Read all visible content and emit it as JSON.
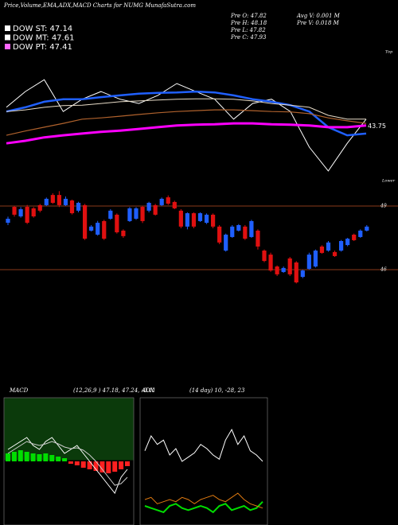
{
  "header": {
    "title": "Price,Volume,EMA,ADX,MACD Charts for NUMG MunafaSutra.com",
    "legend": [
      {
        "label": "DOW ST: 47.14",
        "color": "#ffffff"
      },
      {
        "label": "DOW MT: 47.61",
        "color": "#ffffff"
      },
      {
        "label": "DOW PT: 47.41",
        "color": "#ff66ff"
      }
    ],
    "info": [
      "Pre  O: 47.82",
      "Pre  H: 48.18",
      "Pre  L: 47.82",
      "Pre  C: 47.93"
    ],
    "info2": [
      "Avg V: 0.001 M",
      "Pre  V: 0.018 M"
    ]
  },
  "chart_data": [
    {
      "type": "line",
      "annotations": [
        "Top",
        "Lower"
      ],
      "ylim": [
        42.5,
        45.5
      ],
      "yticks": [
        43.75
      ],
      "series": [
        {
          "color": "#ffffff",
          "width": 1,
          "values": [
            44.19,
            44.56,
            44.84,
            44.09,
            44.38,
            44.56,
            44.38,
            44.28,
            44.47,
            44.75,
            44.56,
            44.38,
            43.91,
            44.28,
            44.38,
            44.09,
            43.25,
            42.69,
            43.34,
            43.91
          ]
        },
        {
          "color": "#2060ff",
          "width": 2.5,
          "values": [
            44.09,
            44.19,
            44.32,
            44.38,
            44.38,
            44.43,
            44.47,
            44.51,
            44.53,
            44.54,
            44.56,
            44.54,
            44.47,
            44.38,
            44.32,
            44.24,
            44.09,
            43.72,
            43.53,
            43.57
          ]
        },
        {
          "color": "#e8dcc8",
          "width": 1,
          "values": [
            44.09,
            44.13,
            44.19,
            44.23,
            44.24,
            44.28,
            44.32,
            44.34,
            44.36,
            44.38,
            44.39,
            44.39,
            44.38,
            44.34,
            44.28,
            44.24,
            44.19,
            44.0,
            43.91,
            43.91
          ]
        },
        {
          "color": "#b0622d",
          "width": 1.2,
          "values": [
            43.53,
            43.63,
            43.72,
            43.81,
            43.91,
            43.94,
            43.98,
            44.02,
            44.06,
            44.09,
            44.11,
            44.13,
            44.13,
            44.11,
            44.09,
            44.08,
            44.04,
            43.94,
            43.87,
            43.81
          ]
        },
        {
          "color": "#ff00ff",
          "width": 3,
          "values": [
            43.34,
            43.4,
            43.48,
            43.53,
            43.57,
            43.61,
            43.64,
            43.68,
            43.72,
            43.76,
            43.78,
            43.79,
            43.81,
            43.81,
            43.79,
            43.78,
            43.76,
            43.72,
            43.72,
            43.76
          ]
        }
      ]
    },
    {
      "type": "candlestick",
      "up_color": "#1f5fff",
      "down_color": "#e01010",
      "ylim": [
        45,
        50.3
      ],
      "yticks": [
        49,
        46
      ],
      "grid_color": "#8a3a1a",
      "open": [
        48.21,
        48.96,
        48.51,
        48.96,
        48.89,
        49.04,
        49.04,
        49.52,
        49.52,
        49.04,
        49.26,
        48.78,
        49.04,
        47.84,
        47.65,
        48.29,
        48.4,
        48.59,
        47.84,
        48.29,
        48.4,
        48.96,
        48.78,
        49.04,
        49.04,
        49.41,
        49.19,
        48.78,
        48.03,
        48.66,
        48.29,
        48.21,
        48.59,
        48.03,
        46.9,
        47.54,
        47.84,
        48.03,
        47.54,
        47.84,
        46.9,
        46.71,
        46.15,
        45.89,
        46.53,
        46.34,
        45.66,
        46.04,
        46.15,
        47.09,
        46.9,
        46.83,
        46.9,
        47.16,
        47.65,
        47.54,
        47.84
      ],
      "high": [
        48.5,
        49.0,
        48.95,
        49.05,
        48.95,
        49.1,
        49.4,
        49.6,
        49.7,
        49.45,
        49.3,
        49.2,
        49.1,
        48.1,
        48.3,
        48.35,
        48.85,
        48.65,
        47.9,
        48.95,
        48.95,
        49.0,
        49.2,
        49.1,
        49.4,
        49.5,
        49.25,
        48.85,
        48.7,
        48.7,
        48.7,
        48.65,
        48.65,
        48.1,
        47.7,
        48.1,
        48.15,
        48.1,
        48.35,
        47.9,
        46.95,
        46.8,
        46.2,
        46.15,
        46.6,
        46.4,
        46.0,
        46.8,
        46.95,
        47.15,
        47.35,
        46.9,
        47.4,
        47.5,
        47.7,
        47.9,
        48.1
      ],
      "low": [
        48.1,
        48.5,
        48.45,
        48.15,
        48.45,
        48.7,
        49.0,
        49.1,
        48.95,
        49.0,
        48.6,
        48.7,
        47.4,
        47.8,
        47.6,
        47.4,
        48.35,
        47.7,
        47.5,
        48.25,
        48.35,
        48.2,
        48.7,
        48.55,
        49.0,
        49.05,
        48.85,
        47.95,
        47.9,
        47.95,
        48.25,
        48.15,
        47.95,
        47.2,
        46.85,
        47.5,
        47.8,
        47.4,
        47.5,
        46.95,
        46.35,
        45.9,
        45.7,
        45.85,
        45.7,
        45.35,
        45.6,
        46.0,
        46.1,
        46.75,
        46.85,
        46.6,
        46.85,
        47.1,
        47.35,
        47.5,
        47.8
      ],
      "close": [
        48.4,
        48.59,
        48.85,
        48.21,
        48.51,
        48.78,
        49.34,
        49.15,
        49.04,
        49.34,
        48.66,
        49.15,
        47.46,
        48.03,
        48.21,
        47.46,
        48.78,
        47.76,
        47.58,
        48.89,
        48.89,
        48.29,
        49.15,
        48.59,
        49.34,
        49.11,
        48.89,
        48.03,
        48.66,
        48.03,
        48.66,
        48.59,
        48.03,
        47.28,
        47.65,
        48.03,
        48.1,
        47.46,
        48.29,
        47.09,
        46.41,
        45.96,
        45.78,
        46.08,
        45.78,
        45.4,
        45.96,
        46.71,
        46.9,
        46.79,
        47.28,
        46.64,
        47.35,
        47.46,
        47.39,
        47.84,
        48.03
      ]
    },
    {
      "type": "macd",
      "title": "MACD",
      "subtitle": "(12,26,9 ) 47.18, 47.24, -0.11",
      "ylim": [
        -0.8,
        0.8
      ],
      "up_color": "#00dd00",
      "down_color": "#ff2020",
      "series": [
        {
          "color": "#ffffff",
          "values": [
            0.15,
            0.2,
            0.25,
            0.3,
            0.2,
            0.15,
            0.25,
            0.3,
            0.2,
            0.1,
            0.15,
            0.2,
            0.1,
            0.0,
            -0.1,
            -0.2,
            -0.3,
            -0.4,
            -0.2,
            -0.1
          ]
        },
        {
          "color": "#cccccc",
          "values": [
            0.1,
            0.15,
            0.2,
            0.25,
            0.22,
            0.2,
            0.22,
            0.25,
            0.22,
            0.18,
            0.16,
            0.17,
            0.14,
            0.08,
            0.0,
            -0.1,
            -0.2,
            -0.3,
            -0.28,
            -0.2
          ]
        }
      ],
      "histogram": [
        0.1,
        0.12,
        0.14,
        0.12,
        0.1,
        0.09,
        0.1,
        0.08,
        0.06,
        0.04,
        -0.03,
        -0.05,
        -0.08,
        -0.1,
        -0.12,
        -0.14,
        -0.15,
        -0.13,
        -0.1,
        -0.06
      ]
    },
    {
      "type": "adx",
      "title": "ADX",
      "subtitle": "(14 day) 10, -28, 23",
      "ylim": [
        0,
        60
      ],
      "series": [
        {
          "color": "#ffffff",
          "values": [
            35,
            42,
            38,
            40,
            33,
            36,
            30,
            32,
            34,
            38,
            36,
            33,
            31,
            40,
            45,
            38,
            42,
            35,
            33,
            30
          ]
        },
        {
          "color": "#00dd00",
          "values": [
            9,
            8,
            7,
            6,
            9,
            10,
            8,
            7,
            8,
            9,
            8,
            6,
            9,
            10,
            7,
            8,
            9,
            7,
            8,
            11
          ]
        },
        {
          "color": "#e07a10",
          "values": [
            12,
            13,
            10,
            11,
            12,
            11,
            13,
            12,
            10,
            12,
            13,
            14,
            12,
            11,
            13,
            15,
            12,
            10,
            9,
            8
          ]
        }
      ]
    }
  ]
}
